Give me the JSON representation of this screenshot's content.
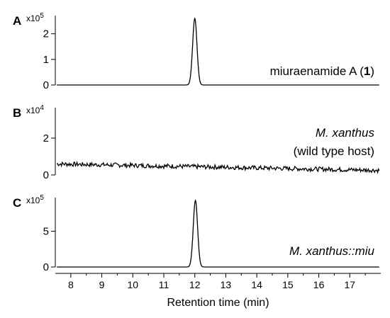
{
  "chart_data": {
    "type": "line",
    "xlabel": "Retention time (min)",
    "xlim": [
      7.5,
      18
    ],
    "x_ticks": [
      8,
      9,
      10,
      11,
      12,
      13,
      14,
      15,
      16,
      17
    ],
    "panels": [
      {
        "letter": "A",
        "multiplier": "x10",
        "exponent": "5",
        "ylim": [
          0,
          2.6
        ],
        "y_ticks": [
          0,
          1,
          2
        ],
        "annotation": [
          {
            "text": "miuraenamide A (",
            "style": "normal"
          },
          {
            "text": "1",
            "style": "bold"
          },
          {
            "text": ")",
            "style": "normal"
          }
        ],
        "annotation_line2": "",
        "peak": {
          "center": 12.0,
          "height": 2.6,
          "width": 0.07
        },
        "baseline": 0.0,
        "noise": 0.0
      },
      {
        "letter": "B",
        "multiplier": "x10",
        "exponent": "4",
        "ylim": [
          0,
          3.5
        ],
        "y_ticks": [
          0,
          2
        ],
        "annotation": [
          {
            "text": "M. xanthus",
            "style": "italic"
          }
        ],
        "annotation_line2": "(wild type host)",
        "peak": null,
        "baseline_start": 0.6,
        "baseline_end": 0.25,
        "noise": 0.12
      },
      {
        "letter": "C",
        "multiplier": "x10",
        "exponent": "5",
        "ylim": [
          0,
          9.3
        ],
        "y_ticks": [
          0,
          5
        ],
        "annotation": [
          {
            "text": "M. xanthus::miu",
            "style": "italic"
          }
        ],
        "annotation_line2": "",
        "peak": {
          "center": 12.02,
          "height": 9.3,
          "width": 0.07
        },
        "baseline": 0.0,
        "noise": 0.0
      }
    ]
  }
}
